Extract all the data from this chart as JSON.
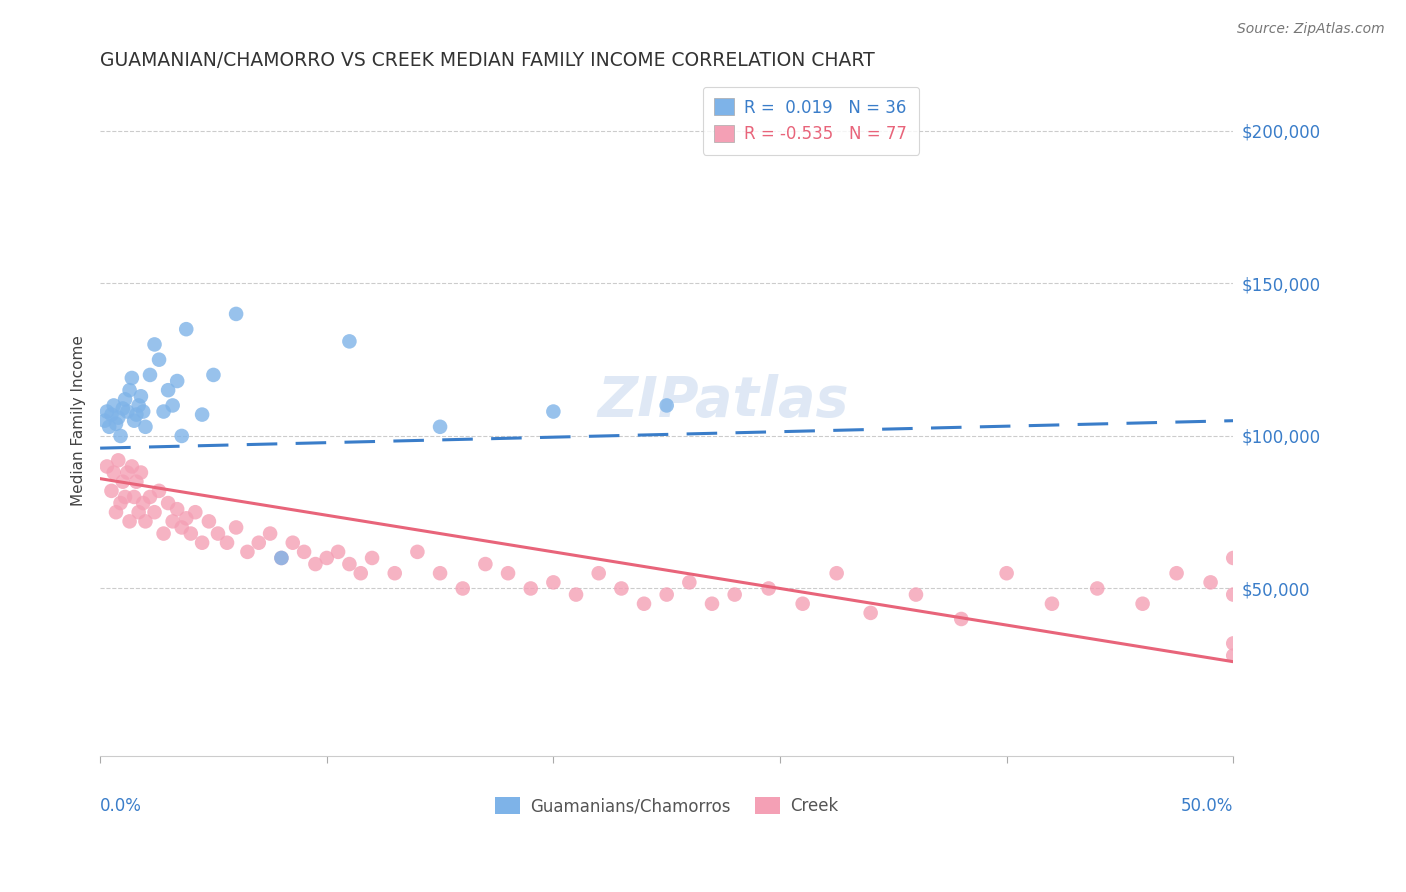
{
  "title": "GUAMANIAN/CHAMORRO VS CREEK MEDIAN FAMILY INCOME CORRELATION CHART",
  "source": "Source: ZipAtlas.com",
  "ylabel": "Median Family Income",
  "xlim": [
    0.0,
    0.5
  ],
  "ylim": [
    -5000,
    215000
  ],
  "yticks": [
    50000,
    100000,
    150000,
    200000
  ],
  "ytick_labels": [
    "$50,000",
    "$100,000",
    "$150,000",
    "$200,000"
  ],
  "guamanian_color": "#7EB3E8",
  "creek_color": "#F4A0B5",
  "guamanian_line_color": "#3A7DC9",
  "creek_line_color": "#E8647A",
  "watermark": "ZIPatlas",
  "background_color": "#FFFFFF",
  "grid_color": "#CCCCCC",
  "guamanian_x": [
    0.002,
    0.003,
    0.004,
    0.005,
    0.006,
    0.007,
    0.008,
    0.009,
    0.01,
    0.011,
    0.012,
    0.013,
    0.014,
    0.015,
    0.016,
    0.017,
    0.018,
    0.019,
    0.02,
    0.022,
    0.024,
    0.026,
    0.028,
    0.03,
    0.032,
    0.034,
    0.036,
    0.038,
    0.045,
    0.05,
    0.06,
    0.08,
    0.11,
    0.15,
    0.2,
    0.25
  ],
  "guamanian_y": [
    105000,
    108000,
    103000,
    107000,
    110000,
    104000,
    106000,
    100000,
    109000,
    112000,
    108000,
    115000,
    119000,
    105000,
    107000,
    110000,
    113000,
    108000,
    103000,
    120000,
    130000,
    125000,
    108000,
    115000,
    110000,
    118000,
    100000,
    135000,
    107000,
    120000,
    140000,
    60000,
    131000,
    103000,
    108000,
    110000
  ],
  "creek_x": [
    0.003,
    0.005,
    0.006,
    0.007,
    0.008,
    0.009,
    0.01,
    0.011,
    0.012,
    0.013,
    0.014,
    0.015,
    0.016,
    0.017,
    0.018,
    0.019,
    0.02,
    0.022,
    0.024,
    0.026,
    0.028,
    0.03,
    0.032,
    0.034,
    0.036,
    0.038,
    0.04,
    0.042,
    0.045,
    0.048,
    0.052,
    0.056,
    0.06,
    0.065,
    0.07,
    0.075,
    0.08,
    0.085,
    0.09,
    0.095,
    0.1,
    0.105,
    0.11,
    0.115,
    0.12,
    0.13,
    0.14,
    0.15,
    0.16,
    0.17,
    0.18,
    0.19,
    0.2,
    0.21,
    0.22,
    0.23,
    0.24,
    0.25,
    0.26,
    0.27,
    0.28,
    0.295,
    0.31,
    0.325,
    0.34,
    0.36,
    0.38,
    0.4,
    0.42,
    0.44,
    0.46,
    0.475,
    0.49,
    0.5,
    0.5,
    0.5,
    0.5
  ],
  "creek_y": [
    90000,
    82000,
    88000,
    75000,
    92000,
    78000,
    85000,
    80000,
    88000,
    72000,
    90000,
    80000,
    85000,
    75000,
    88000,
    78000,
    72000,
    80000,
    75000,
    82000,
    68000,
    78000,
    72000,
    76000,
    70000,
    73000,
    68000,
    75000,
    65000,
    72000,
    68000,
    65000,
    70000,
    62000,
    65000,
    68000,
    60000,
    65000,
    62000,
    58000,
    60000,
    62000,
    58000,
    55000,
    60000,
    55000,
    62000,
    55000,
    50000,
    58000,
    55000,
    50000,
    52000,
    48000,
    55000,
    50000,
    45000,
    48000,
    52000,
    45000,
    48000,
    50000,
    45000,
    55000,
    42000,
    48000,
    40000,
    55000,
    45000,
    50000,
    45000,
    55000,
    52000,
    48000,
    32000,
    60000,
    28000
  ]
}
